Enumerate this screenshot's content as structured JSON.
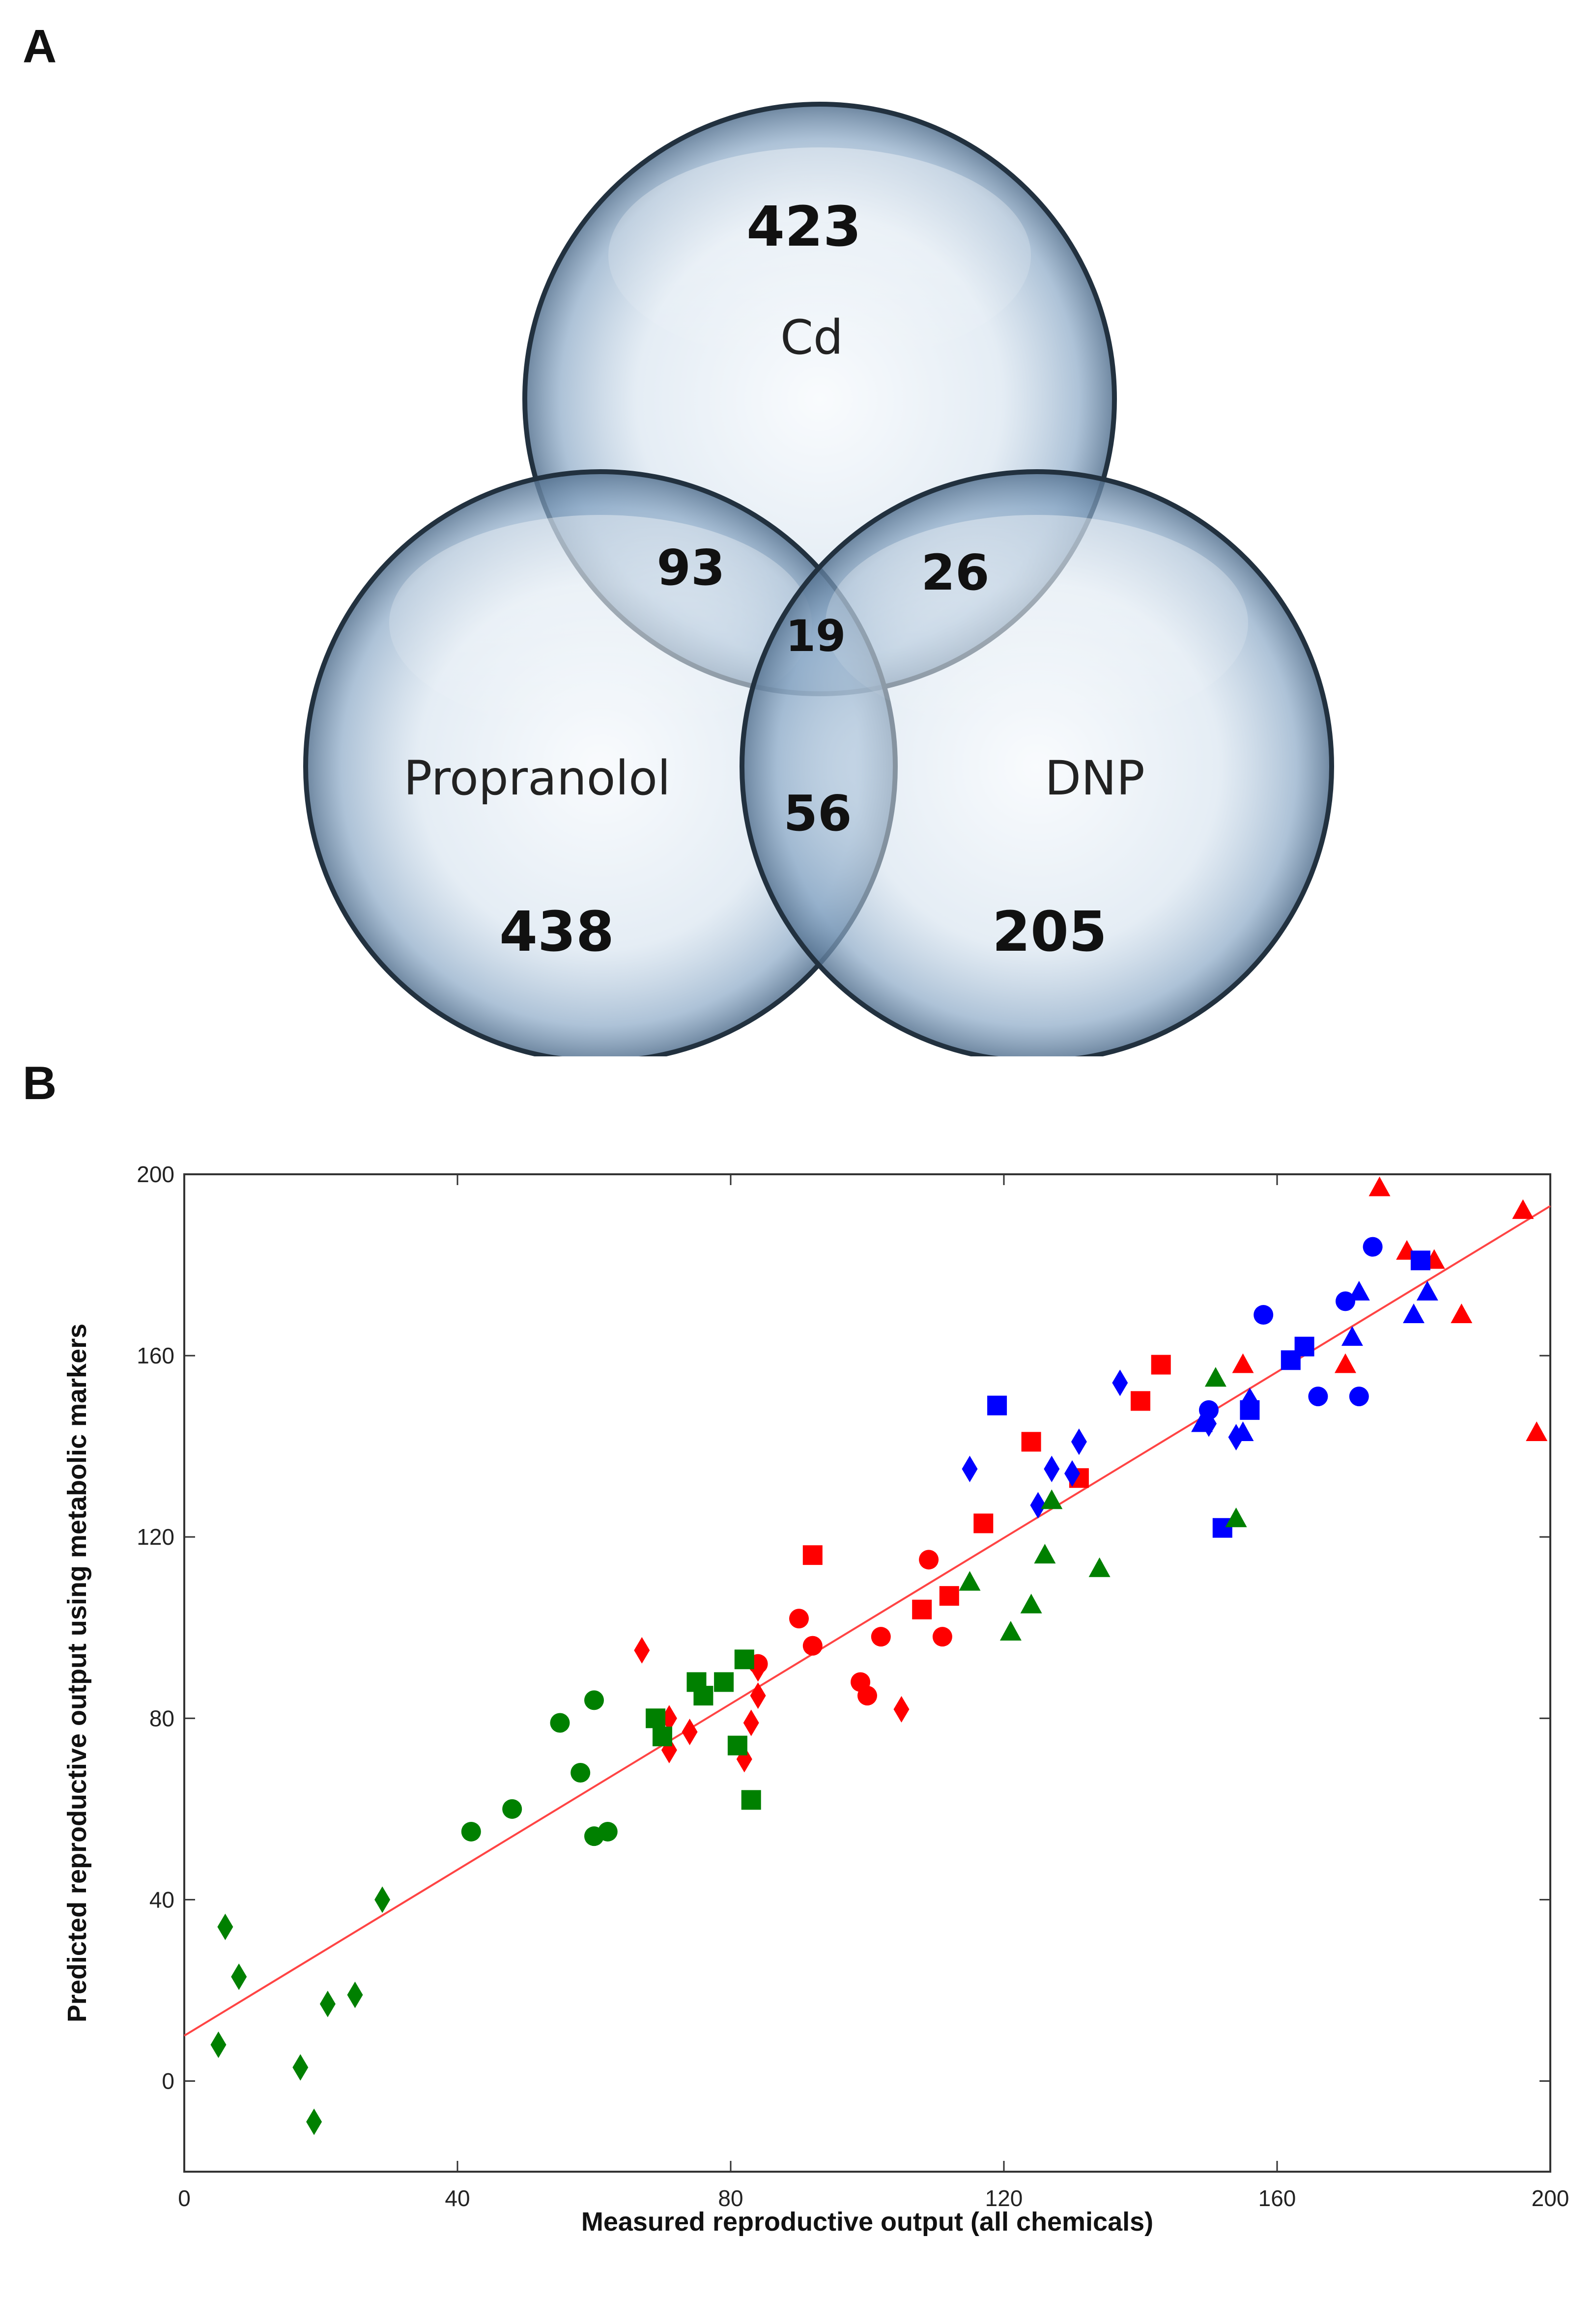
{
  "panels": {
    "a": "A",
    "b": "B"
  },
  "venn": {
    "sets": {
      "top": "Cd",
      "left": "Propranolol",
      "right": "DNP"
    },
    "counts": {
      "cd_only": "423",
      "propranolol_only": "438",
      "dnp_only": "205",
      "cd_propranolol": "93",
      "cd_dnp": "26",
      "propranolol_dnp": "56",
      "all_three": "19"
    }
  },
  "colors": {
    "red": "#ff0000",
    "blue": "#0000ff",
    "green": "#008000",
    "fit_line": "#ff4444",
    "circle_fill": "#c9d9ea",
    "circle_stroke": "#2a3a4a"
  },
  "chart_data": {
    "type": "scatter",
    "title": "",
    "xlabel": "Measured reproductive output (all chemicals)",
    "ylabel": "Predicted reproductive output using metabolic markers",
    "xlim": [
      0,
      200
    ],
    "ylim": [
      -20,
      200
    ],
    "xticks": [
      0,
      40,
      80,
      120,
      160,
      200
    ],
    "yticks": [
      0,
      40,
      80,
      120,
      160,
      200
    ],
    "fit_line": {
      "x": [
        0,
        200
      ],
      "y": [
        10,
        193
      ]
    },
    "series": [
      {
        "name": "red-diamond",
        "color": "red",
        "marker": "diamond",
        "points": [
          [
            67,
            95
          ],
          [
            71,
            80
          ],
          [
            71,
            73
          ],
          [
            74,
            77
          ],
          [
            82,
            71
          ],
          [
            83,
            79
          ],
          [
            84,
            85
          ],
          [
            84,
            91
          ],
          [
            105,
            82
          ]
        ]
      },
      {
        "name": "red-circle",
        "color": "red",
        "marker": "circle",
        "points": [
          [
            84,
            92
          ],
          [
            90,
            102
          ],
          [
            92,
            96
          ],
          [
            99,
            88
          ],
          [
            100,
            85
          ],
          [
            102,
            98
          ],
          [
            109,
            115
          ],
          [
            111,
            98
          ]
        ]
      },
      {
        "name": "red-square",
        "color": "red",
        "marker": "square",
        "points": [
          [
            92,
            116
          ],
          [
            108,
            104
          ],
          [
            112,
            107
          ],
          [
            117,
            123
          ],
          [
            124,
            141
          ],
          [
            131,
            133
          ],
          [
            140,
            150
          ],
          [
            143,
            158
          ]
        ]
      },
      {
        "name": "red-triangle",
        "color": "red",
        "marker": "triangle",
        "points": [
          [
            155,
            158
          ],
          [
            170,
            158
          ],
          [
            175,
            197
          ],
          [
            179,
            183
          ],
          [
            183,
            181
          ],
          [
            187,
            169
          ],
          [
            196,
            192
          ],
          [
            198,
            143
          ]
        ]
      },
      {
        "name": "blue-diamond",
        "color": "blue",
        "marker": "diamond",
        "points": [
          [
            115,
            135
          ],
          [
            125,
            127
          ],
          [
            127,
            135
          ],
          [
            130,
            134
          ],
          [
            131,
            141
          ],
          [
            137,
            154
          ],
          [
            150,
            145
          ],
          [
            154,
            142
          ],
          [
            156,
            150
          ]
        ]
      },
      {
        "name": "blue-circle",
        "color": "blue",
        "marker": "circle",
        "points": [
          [
            150,
            148
          ],
          [
            158,
            169
          ],
          [
            166,
            151
          ],
          [
            170,
            172
          ],
          [
            172,
            151
          ],
          [
            174,
            184
          ]
        ]
      },
      {
        "name": "blue-square",
        "color": "blue",
        "marker": "square",
        "points": [
          [
            119,
            149
          ],
          [
            152,
            122
          ],
          [
            156,
            148
          ],
          [
            162,
            159
          ],
          [
            164,
            162
          ],
          [
            181,
            181
          ]
        ]
      },
      {
        "name": "blue-triangle",
        "color": "blue",
        "marker": "triangle",
        "points": [
          [
            149,
            145
          ],
          [
            155,
            143
          ],
          [
            171,
            164
          ],
          [
            172,
            174
          ],
          [
            180,
            169
          ],
          [
            182,
            174
          ]
        ]
      },
      {
        "name": "green-diamond",
        "color": "green",
        "marker": "diamond",
        "points": [
          [
            5,
            8
          ],
          [
            6,
            34
          ],
          [
            8,
            23
          ],
          [
            17,
            3
          ],
          [
            19,
            -9
          ],
          [
            21,
            17
          ],
          [
            25,
            19
          ],
          [
            29,
            40
          ]
        ]
      },
      {
        "name": "green-circle",
        "color": "green",
        "marker": "circle",
        "points": [
          [
            42,
            55
          ],
          [
            48,
            60
          ],
          [
            55,
            79
          ],
          [
            58,
            68
          ],
          [
            60,
            54
          ],
          [
            60,
            84
          ],
          [
            62,
            55
          ]
        ]
      },
      {
        "name": "green-square",
        "color": "green",
        "marker": "square",
        "points": [
          [
            69,
            80
          ],
          [
            70,
            76
          ],
          [
            75,
            88
          ],
          [
            76,
            85
          ],
          [
            79,
            88
          ],
          [
            81,
            74
          ],
          [
            82,
            93
          ],
          [
            83,
            62
          ]
        ]
      },
      {
        "name": "green-triangle",
        "color": "green",
        "marker": "triangle",
        "points": [
          [
            115,
            110
          ],
          [
            121,
            99
          ],
          [
            124,
            105
          ],
          [
            126,
            116
          ],
          [
            127,
            128
          ],
          [
            134,
            113
          ],
          [
            151,
            155
          ],
          [
            154,
            124
          ]
        ]
      }
    ]
  }
}
